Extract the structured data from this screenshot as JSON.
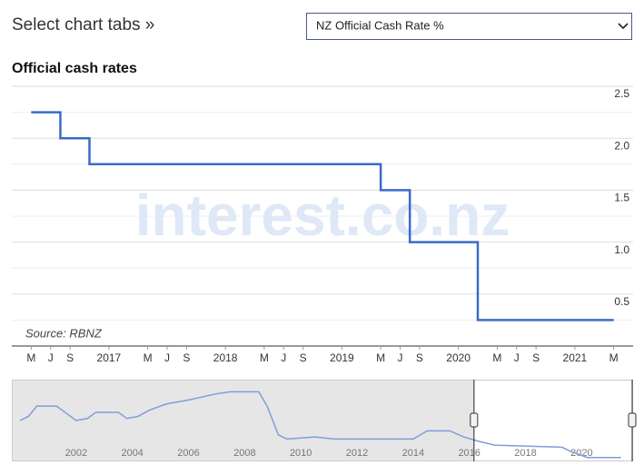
{
  "header": {
    "title": "Select chart tabs »",
    "select": "NZ Official Cash Rate %"
  },
  "chart_data": {
    "type": "step-line",
    "title": "Official cash rates",
    "source": "Source: RBNZ",
    "watermark": "interest.co.nz",
    "x": [
      "2016-05",
      "2016-08",
      "2016-11",
      "2019-05",
      "2019-08",
      "2020-03",
      "2021-05"
    ],
    "values": [
      2.25,
      2.0,
      1.75,
      1.5,
      1.0,
      0.25,
      0.25
    ],
    "color": "#3a6bc9",
    "xlim": [
      "2016-03",
      "2021-07"
    ],
    "xticks": [
      {
        "value": "2016-05",
        "label": "M"
      },
      {
        "value": "2016-07",
        "label": "J"
      },
      {
        "value": "2016-09",
        "label": "S"
      },
      {
        "value": "2017-01",
        "label": "2017"
      },
      {
        "value": "2017-05",
        "label": "M"
      },
      {
        "value": "2017-07",
        "label": "J"
      },
      {
        "value": "2017-09",
        "label": "S"
      },
      {
        "value": "2018-01",
        "label": "2018"
      },
      {
        "value": "2018-05",
        "label": "M"
      },
      {
        "value": "2018-07",
        "label": "J"
      },
      {
        "value": "2018-09",
        "label": "S"
      },
      {
        "value": "2019-01",
        "label": "2019"
      },
      {
        "value": "2019-05",
        "label": "M"
      },
      {
        "value": "2019-07",
        "label": "J"
      },
      {
        "value": "2019-09",
        "label": "S"
      },
      {
        "value": "2020-01",
        "label": "2020"
      },
      {
        "value": "2020-05",
        "label": "M"
      },
      {
        "value": "2020-07",
        "label": "J"
      },
      {
        "value": "2020-09",
        "label": "S"
      },
      {
        "value": "2021-01",
        "label": "2021"
      },
      {
        "value": "2021-05",
        "label": "M"
      }
    ],
    "ylim": [
      0,
      2.5
    ],
    "yticks": [
      {
        "value": 0.5,
        "label": "0.5"
      },
      {
        "value": 1,
        "label": "1.0"
      },
      {
        "value": 1.5,
        "label": "1.5"
      },
      {
        "value": 2,
        "label": "2.0"
      },
      {
        "value": 2.5,
        "label": "2.5"
      }
    ],
    "grid": true,
    "navigator": {
      "x": [
        2000.0,
        2000.3,
        2000.6,
        2001.3,
        2001.6,
        2002.0,
        2002.4,
        2002.7,
        2003.5,
        2003.8,
        2004.2,
        2004.6,
        2005.2,
        2006.0,
        2007.0,
        2007.5,
        2008.5,
        2008.8,
        2009.2,
        2009.5,
        2010.5,
        2011.2,
        2014.0,
        2014.5,
        2015.3,
        2015.8,
        2016.3,
        2016.6,
        2016.9,
        2019.3,
        2019.6,
        2020.2,
        2021.4
      ],
      "values": [
        4.75,
        5.25,
        6.5,
        6.5,
        5.75,
        4.75,
        5.0,
        5.75,
        5.75,
        5.0,
        5.25,
        6.0,
        6.75,
        7.25,
        8.0,
        8.25,
        8.25,
        6.5,
        3.0,
        2.5,
        2.75,
        2.5,
        2.5,
        3.5,
        3.5,
        2.75,
        2.25,
        2.0,
        1.75,
        1.5,
        1.0,
        0.25,
        0.25
      ],
      "color": "#7c9fd9",
      "xlim": [
        1999.74,
        2021.8
      ],
      "ylim": [
        0,
        9.5
      ],
      "xticks": [
        2002,
        2004,
        2006,
        2008,
        2010,
        2012,
        2014,
        2016,
        2018,
        2020
      ]
    }
  }
}
